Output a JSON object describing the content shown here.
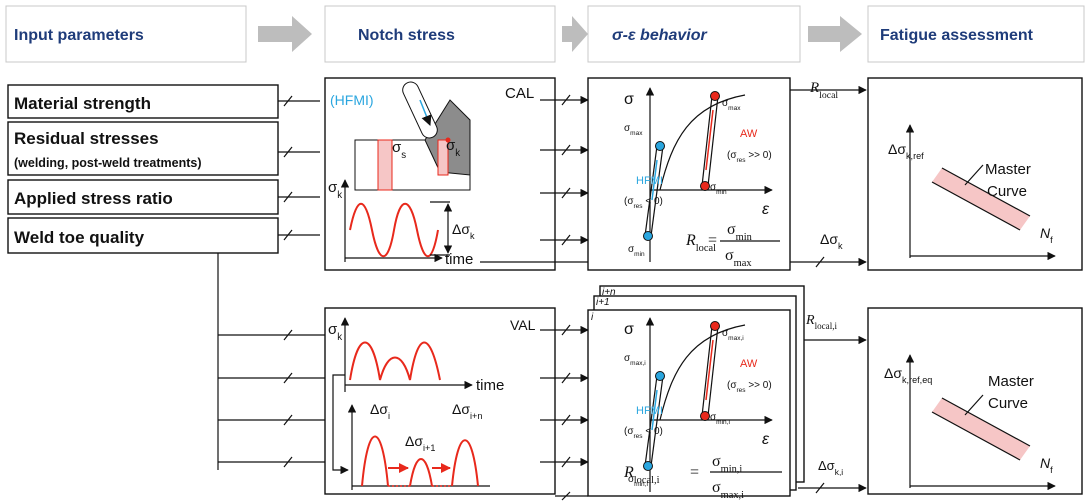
{
  "header": [
    "Input parameters",
    "Notch stress",
    "σ-ε behavior",
    "Fatigue assessment"
  ],
  "inputs": [
    "Material strength",
    "Residual stresses",
    "(welding, post-weld treatments)",
    "Applied stress ratio",
    "Weld toe quality"
  ],
  "cal": {
    "label": "CAL",
    "hfmi": "(HFMI)",
    "sigma_s": [
      "σ",
      "s"
    ],
    "sigma_k": [
      "σ",
      "k"
    ],
    "axis_y": [
      "σ",
      "k"
    ],
    "delta": [
      "Δσ",
      "k"
    ],
    "time": "time"
  },
  "cal_behavior": {
    "sigma": "σ",
    "epsilon": "ε",
    "sigma_max_hfmi": [
      "σ",
      "max"
    ],
    "sigma_max_aw": [
      "σ",
      "max"
    ],
    "aw": "AW",
    "aw_cond": [
      "(σ",
      "res",
      " >> 0)"
    ],
    "hfmi": "HFMI",
    "hfmi_cond": [
      "(σ",
      "res",
      " < 0)"
    ],
    "sigma_min_aw": [
      "σ",
      "min"
    ],
    "sigma_min_hfmi": [
      "σ",
      "min"
    ],
    "r_local": [
      "R",
      "local"
    ],
    "equals": "=",
    "eq_num": [
      "σ",
      "min"
    ],
    "eq_den": [
      "σ",
      "max"
    ]
  },
  "cal_links": {
    "r_local": [
      "R",
      "local"
    ],
    "delta": [
      "Δσ",
      "k"
    ]
  },
  "cal_fatigue": {
    "y_label": [
      "Δσ",
      "k,ref"
    ],
    "curve": [
      "Master",
      "Curve"
    ],
    "x_label": [
      "N",
      "f"
    ]
  },
  "val": {
    "label": "VAL",
    "axis_y": [
      "σ",
      "k"
    ],
    "time": "time",
    "delta_i": [
      "Δσ",
      "i"
    ],
    "delta_i1": [
      "Δσ",
      "i+1"
    ],
    "delta_in": [
      "Δσ",
      "i+n"
    ]
  },
  "val_behavior": {
    "layers": [
      "i",
      "i+1",
      "i+n"
    ],
    "sigma": "σ",
    "epsilon": "ε",
    "sigma_max_hfmi": [
      "σ",
      "max,i"
    ],
    "sigma_max_aw": [
      "σ",
      "max,i"
    ],
    "aw": "AW",
    "aw_cond": [
      "(σ",
      "res",
      " >> 0)"
    ],
    "hfmi": "HFMI",
    "hfmi_cond": [
      "(σ",
      "res",
      " < 0)"
    ],
    "sigma_min_aw": [
      "σ",
      "min,i"
    ],
    "sigma_min_hfmi": [
      "σ",
      "min,i"
    ],
    "r_local": [
      "R",
      "local,i"
    ],
    "equals": "=",
    "eq_num": [
      "σ",
      "min,i"
    ],
    "eq_den": [
      "σ",
      "max,i"
    ]
  },
  "val_links": {
    "r_local": [
      "R",
      "local,i"
    ],
    "delta": [
      "Δσ",
      "k,i"
    ]
  },
  "val_fatigue": {
    "y_label": [
      "Δσ",
      "k,ref,eq"
    ],
    "curve": [
      "Master",
      "Curve"
    ],
    "x_label": [
      "N",
      "f"
    ]
  }
}
